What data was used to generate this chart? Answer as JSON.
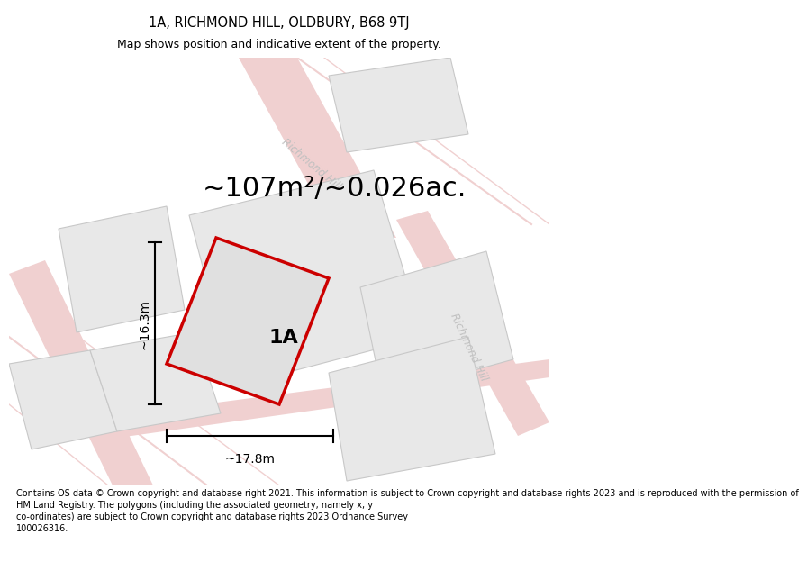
{
  "title": "1A, RICHMOND HILL, OLDBURY, B68 9TJ",
  "subtitle": "Map shows position and indicative extent of the property.",
  "area_text": "~107m²/~0.026ac.",
  "label_1a": "1A",
  "dim_width": "~17.8m",
  "dim_height": "~16.3m",
  "footer": "Contains OS data © Crown copyright and database right 2021. This information is subject to Crown copyright and database rights 2023 and is reproduced with the permission of\nHM Land Registry. The polygons (including the associated geometry, namely x, y\nco-ordinates) are subject to Crown copyright and database rights 2023 Ordnance Survey\n100026316.",
  "road_color": "#f0d0d0",
  "road_color2": "#e8c8c8",
  "block_fill": "#e8e8e8",
  "block_edge": "#c8c8c8",
  "plot_fill": "#e0e0e0",
  "plot_edge": "#cc0000",
  "street_color": "#c0c0c0",
  "title_fontsize": 10.5,
  "subtitle_fontsize": 9,
  "area_fontsize": 22,
  "label_fontsize": 16,
  "dim_fontsize": 10,
  "footer_fontsize": 7,
  "street_fontsize": 8.5
}
